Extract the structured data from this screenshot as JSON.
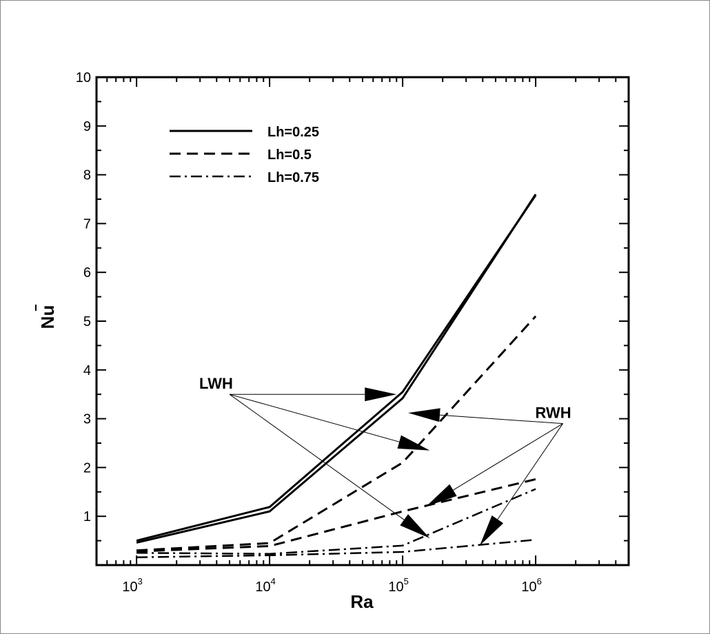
{
  "chart_data": {
    "type": "line",
    "xscale": "log",
    "x": [
      1000,
      10000,
      100000,
      1000000
    ],
    "xlim": [
      500,
      5000000
    ],
    "xticks": [
      {
        "base": "10",
        "exp": "3",
        "value": 1000
      },
      {
        "base": "10",
        "exp": "4",
        "value": 10000
      },
      {
        "base": "10",
        "exp": "5",
        "value": 100000
      },
      {
        "base": "10",
        "exp": "6",
        "value": 1000000
      }
    ],
    "ylim": [
      0,
      10
    ],
    "yticks": [
      "1",
      "2",
      "3",
      "4",
      "5",
      "6",
      "7",
      "8",
      "9",
      "10"
    ],
    "xlabel": "Ra",
    "ylabel": "Nu",
    "grid": false,
    "legend": {
      "placement": "top-left",
      "entries": [
        {
          "label": "Lh=0.25",
          "style": "solid"
        },
        {
          "label": "Lh=0.5",
          "style": "dashed"
        },
        {
          "label": "Lh=0.75",
          "style": "dashdot"
        }
      ]
    },
    "series": [
      {
        "group": "Lh=0.25",
        "heater": "LWH",
        "style": "solid",
        "points": [
          [
            1000,
            0.46
          ],
          [
            10000,
            1.1
          ],
          [
            100000,
            3.42
          ],
          [
            1000000,
            7.6
          ]
        ]
      },
      {
        "group": "Lh=0.25",
        "heater": "RWH",
        "style": "solid",
        "points": [
          [
            1000,
            0.5
          ],
          [
            10000,
            1.19
          ],
          [
            100000,
            3.55
          ],
          [
            1000000,
            7.58
          ]
        ]
      },
      {
        "group": "Lh=0.5",
        "heater": "LWH",
        "style": "dashed",
        "points": [
          [
            1000,
            0.3
          ],
          [
            10000,
            0.45
          ],
          [
            100000,
            2.1
          ],
          [
            1000000,
            5.1
          ]
        ]
      },
      {
        "group": "Lh=0.5",
        "heater": "RWH",
        "style": "dashed",
        "points": [
          [
            1000,
            0.28
          ],
          [
            10000,
            0.39
          ],
          [
            100000,
            1.1
          ],
          [
            1000000,
            1.76
          ]
        ]
      },
      {
        "group": "Lh=0.75",
        "heater": "LWH",
        "style": "dashdot",
        "points": [
          [
            1000,
            0.25
          ],
          [
            10000,
            0.23
          ],
          [
            100000,
            0.4
          ],
          [
            1000000,
            1.56
          ]
        ]
      },
      {
        "group": "Lh=0.75",
        "heater": "RWH",
        "style": "dashdot",
        "points": [
          [
            1000,
            0.16
          ],
          [
            10000,
            0.2
          ],
          [
            100000,
            0.27
          ],
          [
            1000000,
            0.52
          ]
        ]
      }
    ],
    "annotations": [
      {
        "text": "LWH",
        "anchor": [
          5000,
          3.5
        ],
        "targets": [
          [
            90000,
            3.5
          ],
          [
            160000,
            2.35
          ],
          [
            160000,
            0.55
          ]
        ]
      },
      {
        "text": "RWH",
        "anchor": [
          1600000,
          2.9
        ],
        "targets": [
          [
            110000,
            3.12
          ],
          [
            150000,
            1.2
          ],
          [
            380000,
            0.4
          ]
        ]
      }
    ]
  }
}
